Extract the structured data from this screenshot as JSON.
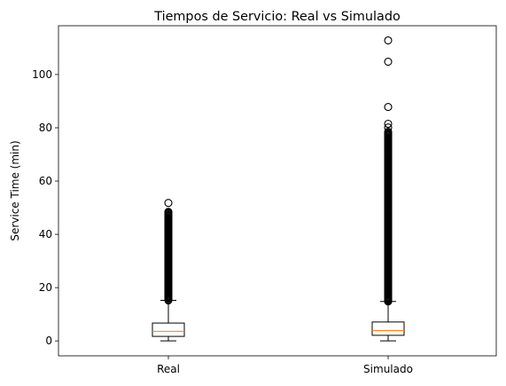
{
  "chart_data": {
    "type": "box",
    "title": "Tiempos de Servicio: Real vs Simulado",
    "xlabel": "",
    "ylabel": "Service Time (min)",
    "categories": [
      "Real",
      "Simulado"
    ],
    "ylim": [
      -5.6,
      118.3
    ],
    "yticks": [
      0,
      20,
      40,
      60,
      80,
      100
    ],
    "grid": false,
    "legend": "none",
    "colors": {
      "box": "#000000",
      "median": "#ff7f0e",
      "outlier_edge": "#000000"
    },
    "boxes": [
      {
        "name": "Real",
        "whisker_low": 0,
        "q1": 1.7,
        "median": 3.6,
        "q3": 6.7,
        "whisker_high": 15.2,
        "outlier_range": [
          15.2,
          48.5
        ],
        "outliers": [
          51.8
        ]
      },
      {
        "name": "Simulado",
        "whisker_low": 0,
        "q1": 2.1,
        "median": 3.9,
        "q3": 7.1,
        "whisker_high": 14.8,
        "outlier_range": [
          14.8,
          78.6
        ],
        "outliers": [
          80.1,
          81.5,
          87.8,
          104.8,
          112.8
        ]
      }
    ]
  }
}
